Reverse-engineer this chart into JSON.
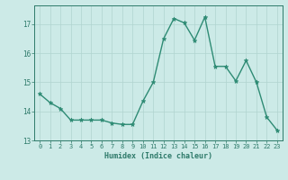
{
  "x": [
    0,
    1,
    2,
    3,
    4,
    5,
    6,
    7,
    8,
    9,
    10,
    11,
    12,
    13,
    14,
    15,
    16,
    17,
    18,
    19,
    20,
    21,
    22,
    23
  ],
  "y": [
    14.6,
    14.3,
    14.1,
    13.7,
    13.7,
    13.7,
    13.7,
    13.6,
    13.55,
    13.55,
    14.35,
    15.0,
    16.5,
    17.2,
    17.05,
    16.45,
    17.25,
    15.55,
    15.55,
    15.05,
    15.75,
    15.0,
    13.8,
    13.35
  ],
  "line_color": "#2e8b74",
  "marker": "*",
  "markersize": 3.5,
  "linewidth": 1.0,
  "bg_color": "#cceae7",
  "grid_color": "#b0d4d0",
  "xlabel": "Humidex (Indice chaleur)",
  "ylabel": "",
  "xlim": [
    -0.5,
    23.5
  ],
  "ylim": [
    13.0,
    17.65
  ],
  "yticks": [
    13,
    14,
    15,
    16,
    17
  ],
  "xticks": [
    0,
    1,
    2,
    3,
    4,
    5,
    6,
    7,
    8,
    9,
    10,
    11,
    12,
    13,
    14,
    15,
    16,
    17,
    18,
    19,
    20,
    21,
    22,
    23
  ],
  "tick_color": "#2e7a6a",
  "label_color": "#2e7a6a",
  "spine_color": "#2e7a6a"
}
